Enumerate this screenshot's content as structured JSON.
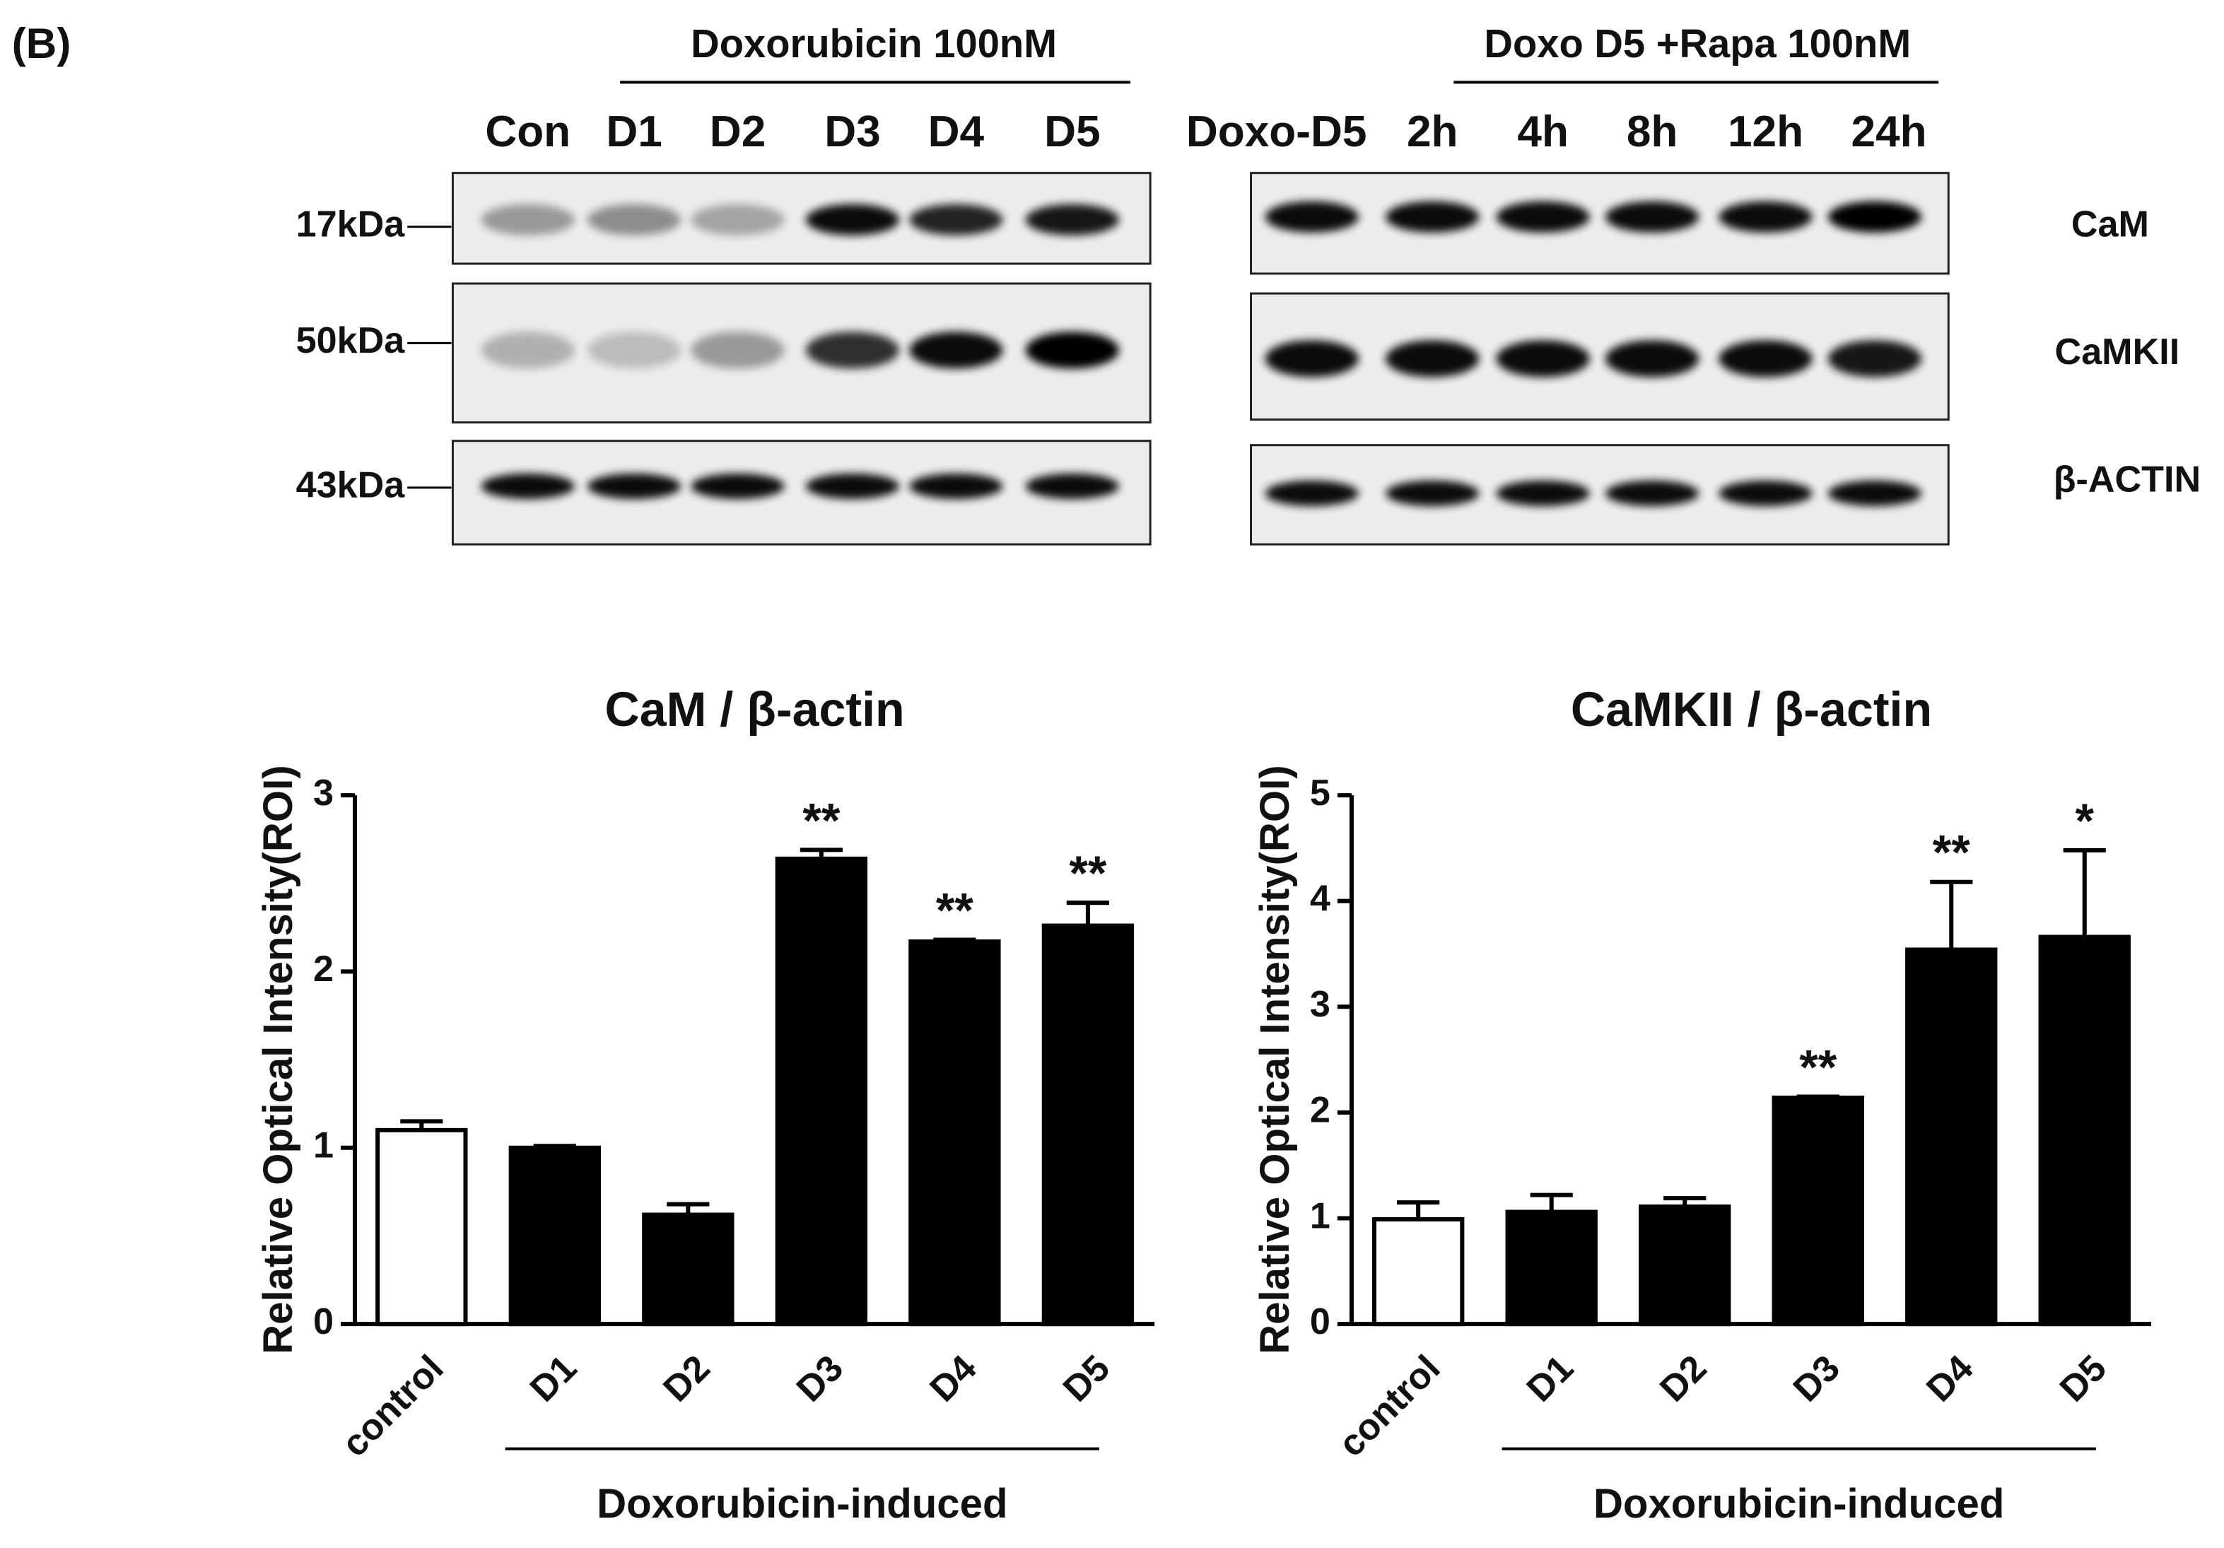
{
  "blot": {
    "panel_label": "(B)",
    "left": {
      "header": "Doxorubicin 100nM",
      "lanes": [
        "Con",
        "D1",
        "D2",
        "D3",
        "D4",
        "D5"
      ]
    },
    "right": {
      "header": "Doxo D5 +Rapa 100nM",
      "lanes": [
        "Doxo-D5",
        "2h",
        "4h",
        "8h",
        "12h",
        "24h"
      ]
    },
    "markers": [
      "17kDa",
      "50kDa",
      "43kDa"
    ],
    "proteins": [
      "CaM",
      "CaMKII",
      "β-ACTIN"
    ]
  },
  "chart_data": [
    {
      "type": "bar",
      "title": "CaM / β-actin",
      "ylabel": "Relative Optical Intensity(ROI)",
      "group_label": "Doxorubicin-induced",
      "categories": [
        "control",
        "D1",
        "D2",
        "D3",
        "D4",
        "D5"
      ],
      "values": [
        1.1,
        1.0,
        0.62,
        2.64,
        2.17,
        2.26
      ],
      "errors": [
        0.05,
        0.01,
        0.06,
        0.05,
        0.01,
        0.13
      ],
      "colors": [
        "#ffffff",
        "#000000",
        "#000000",
        "#000000",
        "#000000",
        "#000000"
      ],
      "annotations": [
        null,
        null,
        null,
        "**",
        "**",
        "**"
      ],
      "ylim": [
        0,
        3
      ],
      "yticks": [
        0,
        1,
        2,
        3
      ]
    },
    {
      "type": "bar",
      "title": "CaMKII / β-actin",
      "ylabel": "Relative Optical Intensity(ROI)",
      "group_label": "Doxorubicin-induced",
      "categories": [
        "control",
        "D1",
        "D2",
        "D3",
        "D4",
        "D5"
      ],
      "values": [
        0.99,
        1.06,
        1.11,
        2.14,
        3.54,
        3.66
      ],
      "errors": [
        0.16,
        0.16,
        0.08,
        0.01,
        0.64,
        0.82
      ],
      "colors": [
        "#ffffff",
        "#000000",
        "#000000",
        "#000000",
        "#000000",
        "#000000"
      ],
      "annotations": [
        null,
        null,
        null,
        "**",
        "**",
        "*"
      ],
      "ylim": [
        0,
        5
      ],
      "yticks": [
        0,
        1,
        2,
        3,
        4,
        5
      ]
    }
  ]
}
